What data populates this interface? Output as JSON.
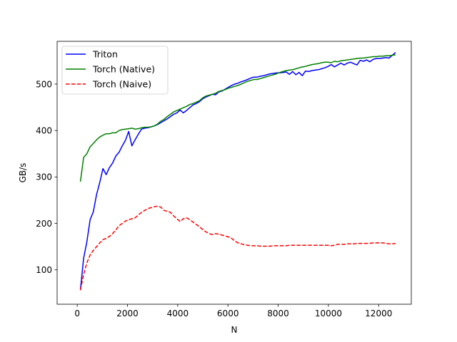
{
  "chart_data": {
    "type": "line",
    "xlabel": "N",
    "ylabel": "GB/s",
    "xlim": [
      -800,
      13300
    ],
    "ylim": [
      26,
      592
    ],
    "xticks": [
      0,
      2000,
      4000,
      6000,
      8000,
      10000,
      12000
    ],
    "xtick_labels": [
      "0",
      "2000",
      "4000",
      "6000",
      "8000",
      "10000",
      "12000"
    ],
    "yticks": [
      100,
      200,
      300,
      400,
      500
    ],
    "ytick_labels": [
      "100",
      "200",
      "300",
      "400",
      "500"
    ],
    "grid": false,
    "legend_position": "upper-left",
    "x": [
      128,
      256,
      384,
      512,
      640,
      768,
      896,
      1024,
      1152,
      1280,
      1408,
      1536,
      1664,
      1792,
      1920,
      2048,
      2176,
      2304,
      2432,
      2560,
      2688,
      2816,
      2944,
      3072,
      3200,
      3328,
      3456,
      3584,
      3712,
      3840,
      3968,
      4096,
      4224,
      4352,
      4480,
      4608,
      4736,
      4864,
      4992,
      5120,
      5248,
      5376,
      5504,
      5632,
      5760,
      5888,
      6016,
      6144,
      6272,
      6400,
      6528,
      6656,
      6784,
      6912,
      7040,
      7168,
      7296,
      7424,
      7552,
      7680,
      7808,
      7936,
      8064,
      8192,
      8320,
      8448,
      8576,
      8704,
      8832,
      8960,
      9088,
      9216,
      9344,
      9472,
      9600,
      9728,
      9856,
      9984,
      10112,
      10240,
      10368,
      10496,
      10624,
      10752,
      10880,
      11008,
      11136,
      11264,
      11392,
      11520,
      11648,
      11776,
      11904,
      12032,
      12160,
      12288,
      12416,
      12544,
      12672
    ],
    "series": [
      {
        "name": "Triton",
        "color": "#0000ff",
        "style": "solid",
        "values": [
          57,
          125,
          160,
          208,
          225,
          262,
          288,
          318,
          305,
          320,
          330,
          345,
          353,
          367,
          379,
          398,
          367,
          380,
          392,
          403,
          405,
          406,
          408,
          410,
          413,
          417,
          421,
          425,
          430,
          435,
          438,
          444,
          438,
          443,
          449,
          455,
          458,
          462,
          468,
          472,
          475,
          478,
          477,
          483,
          485,
          489,
          493,
          497,
          500,
          502,
          505,
          507,
          510,
          513,
          515,
          515,
          517,
          518,
          520,
          522,
          523,
          524,
          524,
          525,
          526,
          521,
          527,
          520,
          525,
          518,
          528,
          527,
          529,
          530,
          531,
          533,
          535,
          538,
          542,
          537,
          541,
          545,
          541,
          545,
          547,
          544,
          541,
          551,
          549,
          552,
          548,
          553,
          555,
          555,
          556,
          557,
          556,
          562,
          568
        ]
      },
      {
        "name": "Torch (Native)",
        "color": "#008000",
        "style": "solid",
        "values": [
          290,
          342,
          350,
          365,
          372,
          380,
          386,
          390,
          393,
          393,
          395,
          395,
          400,
          402,
          403,
          404,
          405,
          403,
          404,
          406,
          407,
          407,
          408,
          410,
          414,
          420,
          424,
          430,
          435,
          440,
          443,
          446,
          449,
          452,
          456,
          458,
          461,
          464,
          470,
          474,
          476,
          478,
          480,
          484,
          486,
          488,
          491,
          493,
          495,
          497,
          500,
          503,
          506,
          508,
          510,
          510,
          512,
          514,
          516,
          518,
          520,
          522,
          525,
          527,
          529,
          530,
          531,
          533,
          535,
          537,
          538,
          540,
          542,
          543,
          544,
          546,
          547,
          547,
          546,
          549,
          548,
          550,
          551,
          552,
          553,
          554,
          555,
          556,
          556,
          557,
          558,
          559,
          559,
          560,
          560,
          561,
          561,
          562,
          563
        ]
      },
      {
        "name": "Torch (Naive)",
        "color": "#ff0000",
        "style": "dashed",
        "values": [
          56,
          90,
          115,
          132,
          142,
          150,
          158,
          165,
          168,
          172,
          178,
          186,
          195,
          200,
          205,
          208,
          210,
          212,
          218,
          224,
          228,
          232,
          234,
          236,
          237,
          235,
          228,
          226,
          224,
          216,
          210,
          204,
          210,
          212,
          208,
          203,
          198,
          193,
          187,
          182,
          178,
          176,
          178,
          177,
          175,
          173,
          171,
          168,
          162,
          158,
          156,
          154,
          153,
          152,
          152,
          152,
          151,
          151,
          151,
          151,
          152,
          152,
          152,
          152,
          152,
          153,
          153,
          153,
          153,
          153,
          153,
          153,
          153,
          153,
          153,
          153,
          153,
          153,
          152,
          153,
          155,
          155,
          155,
          156,
          156,
          156,
          157,
          157,
          157,
          157,
          157,
          158,
          158,
          158,
          158,
          157,
          156,
          156,
          157
        ]
      }
    ]
  }
}
